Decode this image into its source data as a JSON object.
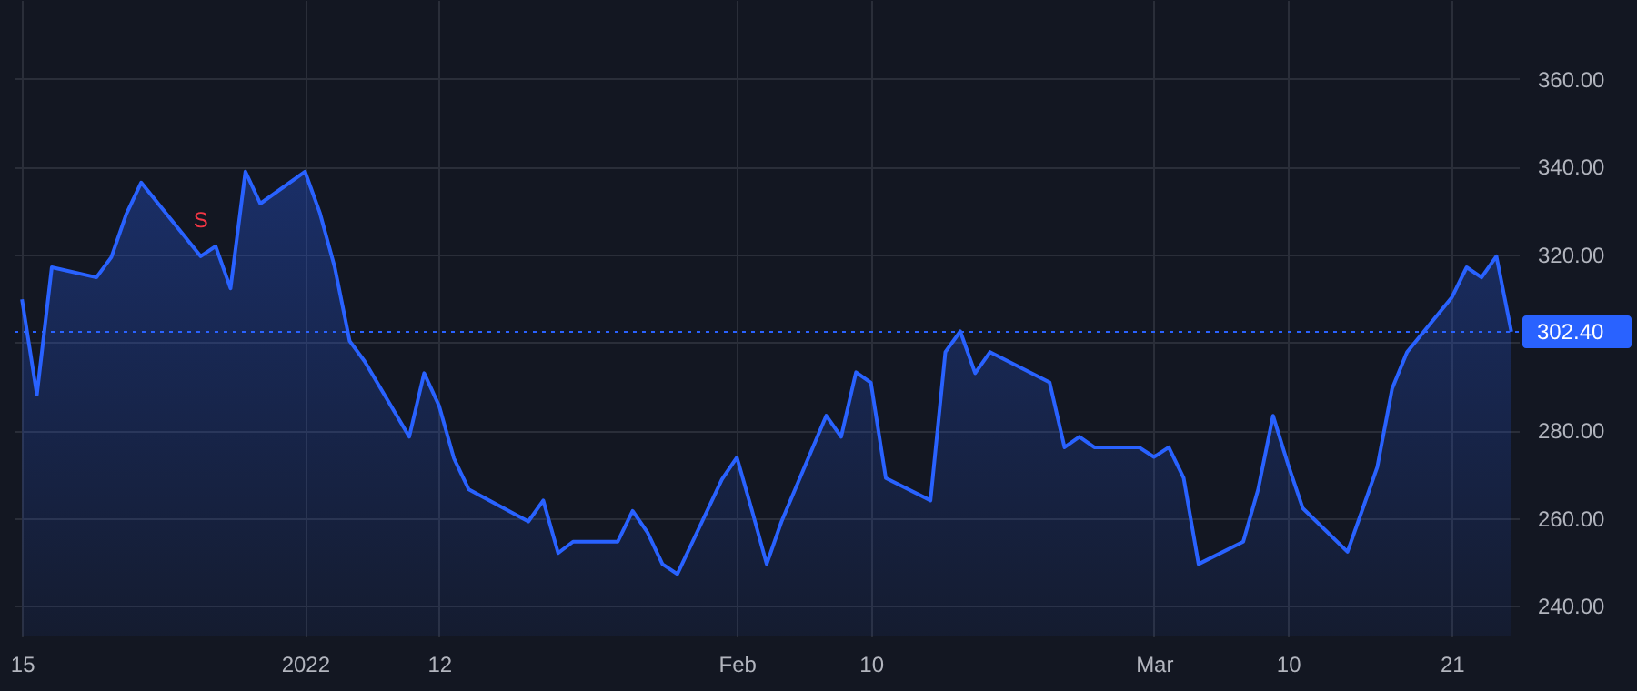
{
  "chart_data": {
    "type": "area",
    "x": [
      "2021-12-15",
      "2021-12-16",
      "2021-12-17",
      "2021-12-20",
      "2021-12-21",
      "2021-12-22",
      "2021-12-23",
      "2021-12-27",
      "2021-12-28",
      "2021-12-29",
      "2021-12-30",
      "2021-12-31",
      "2022-01-03",
      "2022-01-04",
      "2022-01-05",
      "2022-01-06",
      "2022-01-07",
      "2022-01-10",
      "2022-01-11",
      "2022-01-12",
      "2022-01-13",
      "2022-01-14",
      "2022-01-18",
      "2022-01-19",
      "2022-01-20",
      "2022-01-21",
      "2022-01-24",
      "2022-01-25",
      "2022-01-26",
      "2022-01-27",
      "2022-01-28",
      "2022-01-31",
      "2022-02-01",
      "2022-02-02",
      "2022-02-03",
      "2022-02-04",
      "2022-02-07",
      "2022-02-08",
      "2022-02-09",
      "2022-02-10",
      "2022-02-11",
      "2022-02-14",
      "2022-02-15",
      "2022-02-16",
      "2022-02-17",
      "2022-02-18",
      "2022-02-22",
      "2022-02-23",
      "2022-02-24",
      "2022-02-25",
      "2022-02-28",
      "2022-03-01",
      "2022-03-02",
      "2022-03-03",
      "2022-03-04",
      "2022-03-07",
      "2022-03-08",
      "2022-03-09",
      "2022-03-10",
      "2022-03-11",
      "2022-03-14",
      "2022-03-15",
      "2022-03-16",
      "2022-03-17",
      "2022-03-18",
      "2022-03-21",
      "2022-03-22",
      "2022-03-23",
      "2022-03-24",
      "2022-03-25"
    ],
    "series": [
      {
        "color": "#2962ff",
        "values": [
          309.8,
          288.1,
          317.1,
          314.8,
          319.4,
          329.2,
          336.4,
          319.6,
          321.9,
          312.3,
          338.9,
          331.6,
          338.9,
          329.5,
          317.1,
          300.3,
          295.7,
          278.5,
          293,
          285.6,
          273.6,
          266.5,
          259.2,
          264,
          252,
          254.6,
          254.6,
          261.6,
          256.7,
          249.5,
          247.2,
          268.8,
          273.8,
          261.9,
          249.5,
          259.2,
          283.3,
          278.5,
          293.2,
          290.8,
          269.1,
          264,
          297.8,
          302.5,
          293,
          297.8,
          290.9,
          276.1,
          278.5,
          276.1,
          276.1,
          273.9,
          276.1,
          269.1,
          249.5,
          254.6,
          266.5,
          283.3,
          272.3,
          262.2,
          252.3,
          261.9,
          271.6,
          289.5,
          297.8,
          310.2,
          317.1,
          314.8,
          319.6,
          302.4
        ]
      }
    ],
    "xlim": [
      "2021-12-14T12:00",
      "2022-03-25T12:00"
    ],
    "xticks": [
      {
        "value": "2021-12-15",
        "label": "15"
      },
      {
        "value": "2022-01-03",
        "label": "2022"
      },
      {
        "value": "2022-01-12",
        "label": "12"
      },
      {
        "value": "2022-02-01",
        "label": "Feb"
      },
      {
        "value": "2022-02-10",
        "label": "10"
      },
      {
        "value": "2022-03-01",
        "label": "Mar"
      },
      {
        "value": "2022-03-10",
        "label": "10"
      },
      {
        "value": "2022-03-21",
        "label": "21"
      }
    ],
    "ylim": [
      233,
      378
    ],
    "yticks": [
      {
        "value": 240,
        "label": "240.00"
      },
      {
        "value": 260,
        "label": "260.00"
      },
      {
        "value": 280,
        "label": "280.00"
      },
      {
        "value": 300,
        "label": null
      },
      {
        "value": 320,
        "label": "320.00"
      },
      {
        "value": 340,
        "label": "340.00"
      },
      {
        "value": 360,
        "label": "360.00"
      }
    ],
    "grid": true,
    "line_style": "solid",
    "ref_lines": [
      {
        "axis": "y",
        "value": 302.4,
        "label": "302.40",
        "color": "#2962ff",
        "line_style": "dotted"
      }
    ],
    "annotations": [
      {
        "text": "S",
        "x": "2021-12-27",
        "y": 319.6
      }
    ]
  }
}
